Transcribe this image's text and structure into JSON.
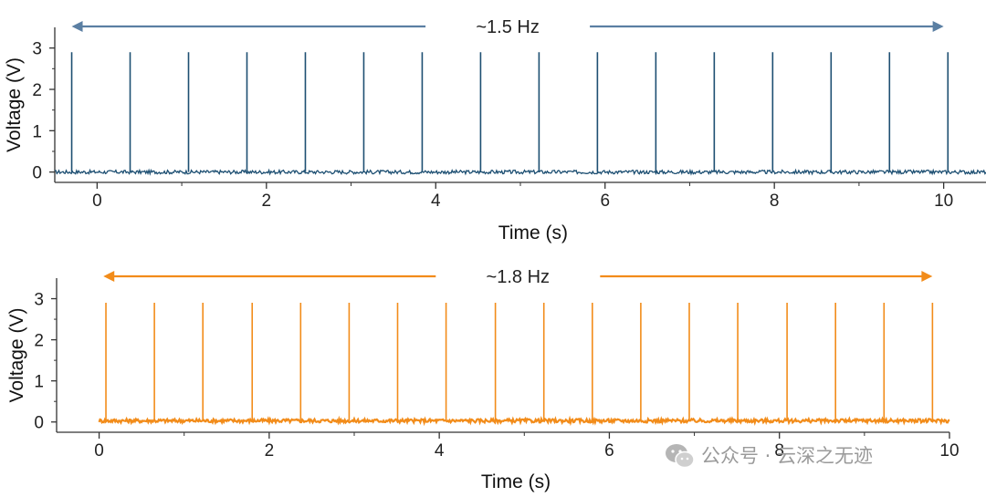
{
  "chart_data": [
    {
      "type": "line",
      "color": "#1d4f72",
      "arrow_color": "#5b7fa3",
      "xlabel": "Time (s)",
      "ylabel": "Voltage (V)",
      "xlim": [
        -0.5,
        10.5
      ],
      "ylim": [
        -0.25,
        3.5
      ],
      "xticks": [
        "0",
        "2",
        "4",
        "6",
        "8",
        "10"
      ],
      "yticks": [
        "0",
        "1",
        "2",
        "3"
      ],
      "annotation": "~1.5 Hz",
      "arrow_span": [
        -0.3,
        10.0
      ],
      "baseline_v": 0.0,
      "spike_peak_v": 2.9,
      "spike_times_s": [
        -0.3,
        0.39,
        1.08,
        1.77,
        2.46,
        3.15,
        3.84,
        4.53,
        5.22,
        5.91,
        6.6,
        7.29,
        7.98,
        8.67,
        9.36,
        10.05
      ],
      "data_end_s": 10.5
    },
    {
      "type": "line",
      "color": "#f28c1a",
      "arrow_color": "#f28c1a",
      "xlabel": "Time (s)",
      "ylabel": "Voltage (V)",
      "xlim": [
        -0.5,
        10.0
      ],
      "ylim": [
        -0.25,
        3.5
      ],
      "xticks": [
        "0",
        "2",
        "4",
        "6",
        "8",
        "10"
      ],
      "yticks": [
        "0",
        "1",
        "2",
        "3"
      ],
      "annotation": "~1.8 Hz",
      "arrow_span": [
        0.05,
        9.8
      ],
      "baseline_v": 0.03,
      "spike_peak_v": 2.9,
      "spike_times_s": [
        0.08,
        0.65,
        1.22,
        1.8,
        2.37,
        2.94,
        3.51,
        4.08,
        4.66,
        5.23,
        5.8,
        6.37,
        6.94,
        7.51,
        8.09,
        8.66,
        9.23,
        9.8
      ],
      "data_start_s": 0.0,
      "data_end_s": 10.0
    }
  ],
  "watermark": {
    "icon": "wechat-icon",
    "text": "公众号 · 云深之无迹"
  }
}
